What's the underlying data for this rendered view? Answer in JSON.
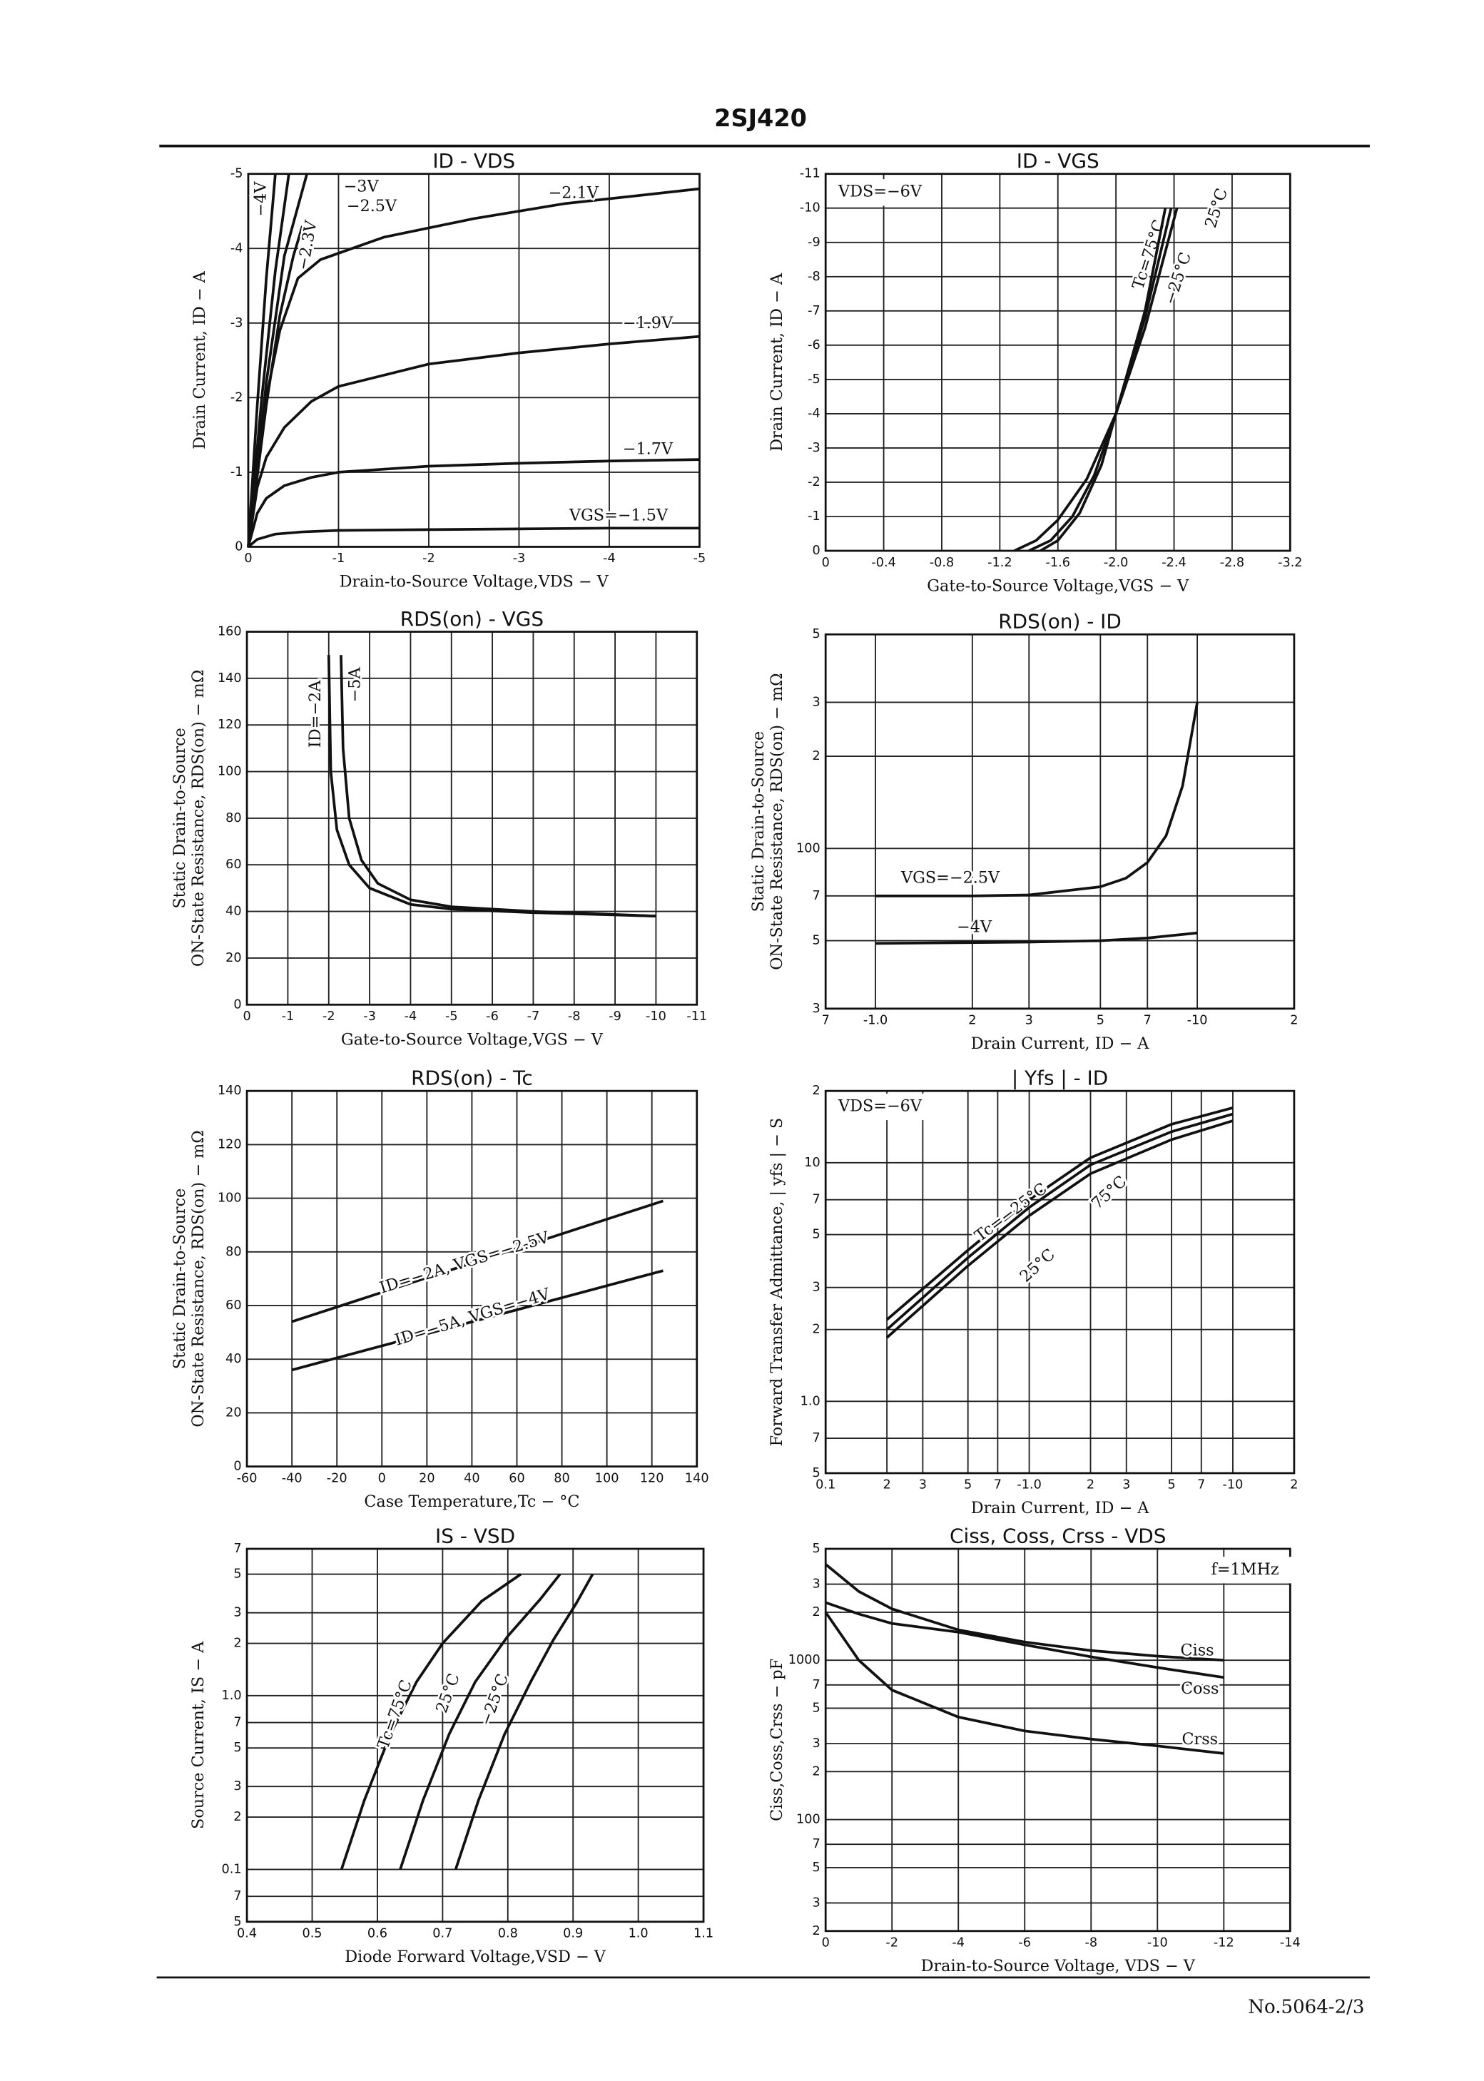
{
  "header": {
    "title": "2SJ420"
  },
  "footer": "No.5064-2/3",
  "chart_data": [
    {
      "type": "line",
      "title": "ID - VDS",
      "xlabel": "Drain-to-Source Voltage,VDS − V",
      "ylabel": [
        "Drain Current, ID − A"
      ],
      "xlim": [
        0,
        -5
      ],
      "ylim": [
        0,
        -5
      ],
      "xticks": [
        0,
        -1,
        -2,
        -3,
        -4,
        -5
      ],
      "yticks": [
        0,
        -1,
        -2,
        -3,
        -4,
        -5
      ],
      "grid": true,
      "color": "#111111",
      "series": [
        {
          "name": "−4V",
          "x": [
            0,
            -0.1,
            -0.2,
            -0.3
          ],
          "values": [
            0,
            -1.9,
            -3.6,
            -5
          ]
        },
        {
          "name": "−3V",
          "x": [
            0,
            -0.15,
            -0.3,
            -0.45
          ],
          "values": [
            0,
            -2,
            -3.7,
            -5
          ]
        },
        {
          "name": "−2.5V",
          "x": [
            0,
            -0.2,
            -0.4,
            -0.65
          ],
          "values": [
            0,
            -2.2,
            -3.9,
            -5
          ]
        },
        {
          "name": "−2.3V",
          "x": [
            0,
            -0.2,
            -0.35,
            -0.5,
            -0.6
          ],
          "values": [
            0,
            -1.9,
            -3.1,
            -3.9,
            -4.3
          ]
        },
        {
          "name": "−2.1V",
          "x": [
            0,
            -0.1,
            -0.2,
            -0.35,
            -0.55,
            -0.8,
            -1.5,
            -2.5,
            -3.5,
            -5
          ],
          "values": [
            0,
            -1.2,
            -2.0,
            -2.9,
            -3.6,
            -3.85,
            -4.15,
            -4.4,
            -4.6,
            -4.8
          ]
        },
        {
          "name": "−1.9V",
          "x": [
            0,
            -0.1,
            -0.2,
            -0.4,
            -0.7,
            -1,
            -2,
            -3,
            -4,
            -5
          ],
          "values": [
            0,
            -0.8,
            -1.2,
            -1.6,
            -1.95,
            -2.15,
            -2.45,
            -2.6,
            -2.72,
            -2.82
          ]
        },
        {
          "name": "−1.7V",
          "x": [
            0,
            -0.1,
            -0.2,
            -0.4,
            -0.7,
            -1,
            -2,
            -3,
            -4,
            -5
          ],
          "values": [
            0,
            -0.45,
            -0.65,
            -0.82,
            -0.93,
            -1.0,
            -1.08,
            -1.12,
            -1.15,
            -1.17
          ]
        },
        {
          "name": "VGS=−1.5V",
          "x": [
            0,
            -0.1,
            -0.3,
            -0.6,
            -1,
            -2,
            -3,
            -4,
            -5
          ],
          "values": [
            0,
            -0.1,
            -0.17,
            -0.2,
            -0.22,
            -0.23,
            -0.24,
            -0.25,
            -0.25
          ]
        }
      ]
    },
    {
      "type": "line",
      "title": "ID - VGS",
      "xlabel": "Gate-to-Source Voltage,VGS − V",
      "ylabel": [
        "Drain Current, ID − A"
      ],
      "annotation": "VDS=−6V",
      "xlim": [
        0,
        -3.2
      ],
      "ylim": [
        0,
        -11
      ],
      "xticks": [
        0,
        -0.4,
        -0.8,
        -1.2,
        -1.6,
        {
          "value": -2,
          "label": "-2.0"
        },
        -2.4,
        -2.8,
        -3.2
      ],
      "yticks": [
        0,
        -1,
        -2,
        -3,
        -4,
        -5,
        -6,
        -7,
        -8,
        -9,
        -10,
        -11
      ],
      "grid": true,
      "color": "#111111",
      "series": [
        {
          "name": "Tc=75°C",
          "x": [
            -1.3,
            -1.45,
            -1.6,
            -1.8,
            -2.0,
            -2.2,
            -2.42
          ],
          "values": [
            0,
            -0.3,
            -0.9,
            -2.1,
            -4.0,
            -6.5,
            -10
          ]
        },
        {
          "name": "25°C",
          "x": [
            -1.4,
            -1.55,
            -1.7,
            -1.85,
            -2.0,
            -2.2,
            -2.38
          ],
          "values": [
            0,
            -0.3,
            -1.0,
            -2.2,
            -4.0,
            -6.8,
            -10
          ]
        },
        {
          "name": "−25°C",
          "x": [
            -1.48,
            -1.6,
            -1.75,
            -1.9,
            -2.0,
            -2.2,
            -2.34
          ],
          "values": [
            0,
            -0.3,
            -1.1,
            -2.5,
            -4.0,
            -7.0,
            -10
          ]
        }
      ]
    },
    {
      "type": "line",
      "title": "RDS(on) - VGS",
      "xlabel": "Gate-to-Source Voltage,VGS − V",
      "ylabel": [
        "Static Drain-to-Source",
        "ON-State Resistance, RDS(on) − mΩ"
      ],
      "xlim": [
        0,
        -11
      ],
      "ylim": [
        0,
        160
      ],
      "xticks": [
        0,
        -1,
        -2,
        -3,
        -4,
        -5,
        -6,
        -7,
        -8,
        -9,
        -10,
        -11
      ],
      "yticks": [
        0,
        20,
        40,
        60,
        80,
        100,
        120,
        140,
        160
      ],
      "grid": true,
      "color": "#111111",
      "series": [
        {
          "name": "ID=−2A",
          "x": [
            -2,
            -2.05,
            -2.2,
            -2.5,
            -3,
            -4,
            -5,
            -7,
            -10
          ],
          "values": [
            150,
            100,
            75,
            60,
            50,
            43,
            41,
            39.5,
            38
          ]
        },
        {
          "name": "−5A",
          "x": [
            -2.3,
            -2.35,
            -2.5,
            -2.8,
            -3.2,
            -4,
            -5,
            -7,
            -10
          ],
          "values": [
            150,
            110,
            80,
            62,
            52,
            45,
            42,
            40,
            38
          ]
        }
      ]
    },
    {
      "type": "line",
      "title": "RDS(on) - ID",
      "xlabel": "Drain Current, ID − A",
      "ylabel": [
        "Static Drain-to-Source",
        "ON-State Resistance, RDS(on) − mΩ"
      ],
      "xscale": "log",
      "yscale": "log",
      "xlim": [
        -0.7,
        -20
      ],
      "ylim": [
        30,
        500
      ],
      "xticks": [
        {
          "value": -0.7,
          "label": "7"
        },
        {
          "value": -1,
          "label": "-1.0"
        },
        {
          "value": -2,
          "label": "2"
        },
        {
          "value": -3,
          "label": "3"
        },
        {
          "value": -5,
          "label": "5"
        },
        {
          "value": -7,
          "label": "7"
        },
        -10,
        {
          "value": -20,
          "label": "2"
        }
      ],
      "yticks": [
        {
          "value": 30,
          "label": "3"
        },
        {
          "value": 50,
          "label": "5"
        },
        {
          "value": 70,
          "label": "7"
        },
        100,
        {
          "value": 200,
          "label": "2"
        },
        {
          "value": 300,
          "label": "3"
        },
        {
          "value": 500,
          "label": "5"
        }
      ],
      "grid": true,
      "color": "#111111",
      "series": [
        {
          "name": "VGS=−2.5V",
          "x": [
            -1,
            -2,
            -3,
            -5,
            -6,
            -7,
            -8,
            -9,
            -10
          ],
          "values": [
            70,
            70,
            70.5,
            75,
            80,
            90,
            110,
            160,
            300
          ]
        },
        {
          "name": "−4V",
          "x": [
            -1,
            -3,
            -5,
            -7,
            -10
          ],
          "values": [
            49,
            49.5,
            50,
            51,
            53
          ]
        }
      ]
    },
    {
      "type": "line",
      "title": "RDS(on) - Tc",
      "xlabel": "Case Temperature,Tc − °C",
      "ylabel": [
        "Static Drain-to-Source",
        "ON-State Resistance, RDS(on) − mΩ"
      ],
      "xlim": [
        -60,
        140
      ],
      "ylim": [
        0,
        140
      ],
      "xticks": [
        -60,
        -40,
        -20,
        0,
        20,
        40,
        60,
        80,
        100,
        120,
        140
      ],
      "yticks": [
        0,
        20,
        40,
        60,
        80,
        100,
        120,
        140
      ],
      "grid": true,
      "color": "#111111",
      "series": [
        {
          "name": "ID=−2A, VGS=−2.5V",
          "x": [
            -40,
            125
          ],
          "values": [
            54,
            99
          ]
        },
        {
          "name": "ID=−5A, VGS=−4V",
          "x": [
            -40,
            125
          ],
          "values": [
            36,
            73
          ]
        }
      ]
    },
    {
      "type": "line",
      "title": "| Yfs | - ID",
      "xlabel": "Drain Current, ID − A",
      "ylabel": [
        "Forward Transfer Admittance, | yfs | − S"
      ],
      "annotation": "VDS=−6V",
      "xscale": "log",
      "yscale": "log",
      "xlim": [
        -0.1,
        -20
      ],
      "ylim": [
        0.5,
        20
      ],
      "xticks": [
        {
          "value": -0.1,
          "label": "0.1"
        },
        {
          "value": -0.2,
          "label": "2"
        },
        {
          "value": -0.3,
          "label": "3"
        },
        {
          "value": -0.5,
          "label": "5"
        },
        {
          "value": -0.7,
          "label": "7"
        },
        {
          "value": -1,
          "label": "-1.0"
        },
        {
          "value": -2,
          "label": "2"
        },
        {
          "value": -3,
          "label": "3"
        },
        {
          "value": -5,
          "label": "5"
        },
        {
          "value": -7,
          "label": "7"
        },
        -10,
        {
          "value": -20,
          "label": "2"
        }
      ],
      "yticks": [
        {
          "value": 0.5,
          "label": "5"
        },
        {
          "value": 0.7,
          "label": "7"
        },
        {
          "value": 1,
          "label": "1.0"
        },
        2,
        3,
        5,
        7,
        10,
        {
          "value": 20,
          "label": "2"
        }
      ],
      "grid": true,
      "color": "#111111",
      "series": [
        {
          "name": "Tc=−25°C",
          "x": [
            -0.2,
            -0.5,
            -1,
            -2,
            -5,
            -10
          ],
          "values": [
            2.2,
            4.3,
            7,
            10.5,
            14.5,
            17
          ]
        },
        {
          "name": "75°C",
          "x": [
            -0.2,
            -0.5,
            -1,
            -2,
            -5,
            -10
          ],
          "values": [
            2.0,
            4.0,
            6.5,
            9.8,
            13.5,
            16
          ]
        },
        {
          "name": "25°C",
          "x": [
            -0.2,
            -0.5,
            -1,
            -2,
            -5,
            -10
          ],
          "values": [
            1.85,
            3.7,
            6.0,
            9.0,
            12.5,
            15
          ]
        }
      ]
    },
    {
      "type": "line",
      "title": "IS - VSD",
      "xlabel": "Diode Forward Voltage,VSD − V",
      "ylabel": [
        "Source Current, IS − A"
      ],
      "yscale": "log",
      "xlim": [
        0.4,
        1.1
      ],
      "ylim": [
        0.05,
        7
      ],
      "xticks": [
        0.4,
        0.5,
        0.6,
        0.7,
        0.8,
        0.9,
        {
          "value": 1,
          "label": "1.0"
        },
        1.1
      ],
      "yticks": [
        {
          "value": 0.05,
          "label": "5"
        },
        {
          "value": 0.07,
          "label": "7"
        },
        0.1,
        {
          "value": 0.2,
          "label": "2"
        },
        {
          "value": 0.3,
          "label": "3"
        },
        {
          "value": 0.5,
          "label": "5"
        },
        {
          "value": 0.7,
          "label": "7"
        },
        {
          "value": 1,
          "label": "1.0"
        },
        2,
        3,
        5,
        7
      ],
      "grid": true,
      "color": "#111111",
      "series": [
        {
          "name": "Tc=75°C",
          "x": [
            0.545,
            0.58,
            0.62,
            0.66,
            0.7,
            0.76,
            0.82
          ],
          "values": [
            0.1,
            0.25,
            0.6,
            1.2,
            2,
            3.5,
            5
          ]
        },
        {
          "name": "25°C",
          "x": [
            0.635,
            0.67,
            0.71,
            0.75,
            0.8,
            0.85,
            0.88
          ],
          "values": [
            0.1,
            0.25,
            0.6,
            1.2,
            2.2,
            3.6,
            5
          ]
        },
        {
          "name": "−25°C",
          "x": [
            0.72,
            0.755,
            0.795,
            0.835,
            0.87,
            0.905,
            0.93
          ],
          "values": [
            0.1,
            0.25,
            0.6,
            1.2,
            2.1,
            3.4,
            5
          ]
        }
      ]
    },
    {
      "type": "line",
      "title": "Ciss, Coss, Crss - VDS",
      "xlabel": "Drain-to-Source Voltage, VDS − V",
      "ylabel": [
        "Ciss,Coss,Crss − pF"
      ],
      "annotation": "f=1MHz",
      "yscale": "log",
      "xlim": [
        0,
        -14
      ],
      "ylim": [
        20,
        5000
      ],
      "xticks": [
        0,
        -2,
        -4,
        -6,
        -8,
        -10,
        -12,
        -14
      ],
      "yticks": [
        {
          "value": 20,
          "label": "2"
        },
        {
          "value": 30,
          "label": "3"
        },
        {
          "value": 50,
          "label": "5"
        },
        {
          "value": 70,
          "label": "7"
        },
        100,
        {
          "value": 200,
          "label": "2"
        },
        {
          "value": 300,
          "label": "3"
        },
        {
          "value": 500,
          "label": "5"
        },
        {
          "value": 700,
          "label": "7"
        },
        1000,
        {
          "value": 2000,
          "label": "2"
        },
        {
          "value": 3000,
          "label": "3"
        },
        {
          "value": 5000,
          "label": "5"
        }
      ],
      "grid": true,
      "color": "#111111",
      "series": [
        {
          "name": "Ciss",
          "x": [
            0,
            -1,
            -2,
            -4,
            -6,
            -8,
            -10,
            -12
          ],
          "values": [
            4000,
            2700,
            2100,
            1550,
            1300,
            1150,
            1060,
            1000
          ]
        },
        {
          "name": "Coss",
          "x": [
            0,
            -1,
            -2,
            -4,
            -6,
            -8,
            -10,
            -12
          ],
          "values": [
            2300,
            1950,
            1700,
            1500,
            1250,
            1050,
            900,
            780
          ]
        },
        {
          "name": "Crss",
          "x": [
            0,
            -1,
            -2,
            -4,
            -6,
            -8,
            -10,
            -12
          ],
          "values": [
            2000,
            1000,
            650,
            440,
            360,
            320,
            290,
            260
          ]
        }
      ]
    }
  ]
}
